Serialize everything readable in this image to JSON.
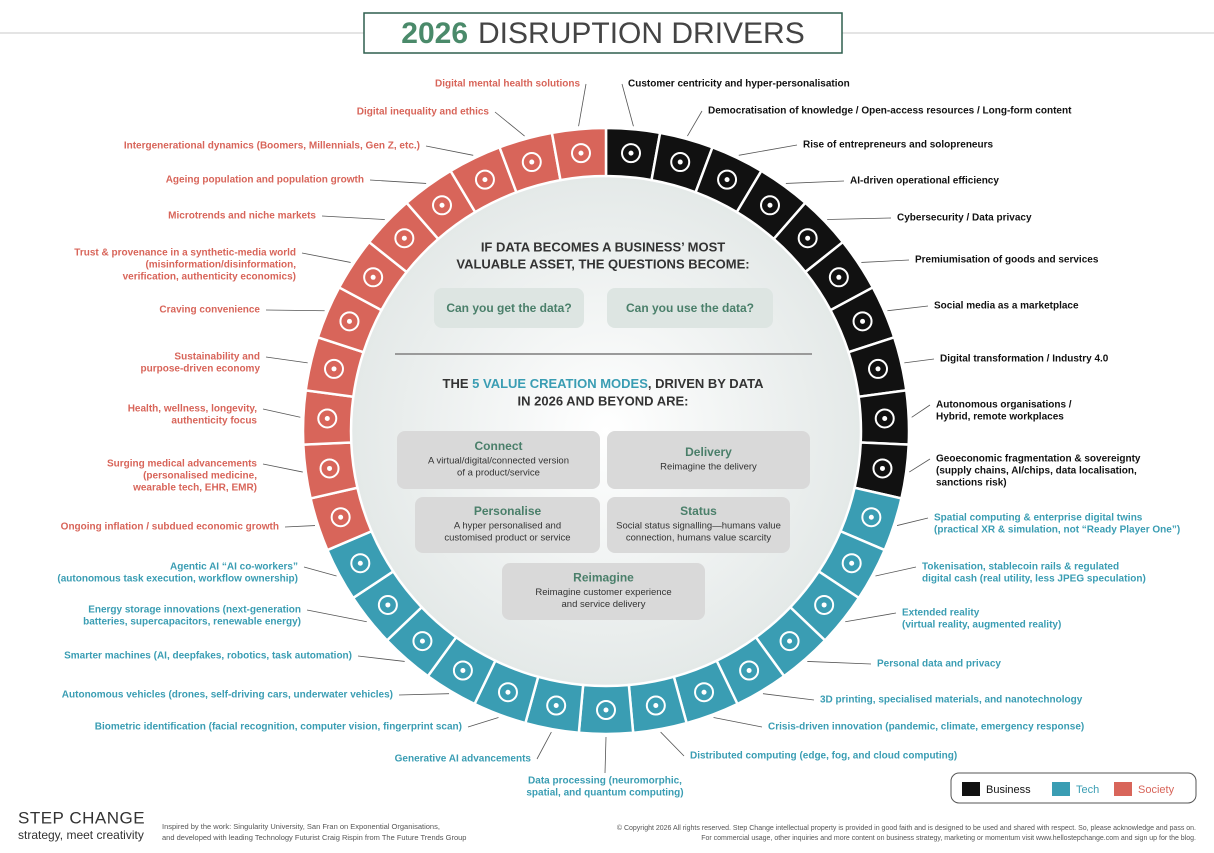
{
  "title": {
    "year": "2026",
    "text": "DISRUPTION DRIVERS"
  },
  "categories": [
    {
      "name": "Business",
      "color": "#111111"
    },
    {
      "name": "Tech",
      "color": "#3a9db3"
    },
    {
      "name": "Society",
      "color": "#d8655a"
    }
  ],
  "drivers": [
    {
      "category": "Business",
      "lines": [
        "Customer centricity and hyper-personalisation"
      ]
    },
    {
      "category": "Business",
      "lines": [
        "Democratisation of knowledge / Open-access resources / Long-form content"
      ]
    },
    {
      "category": "Business",
      "lines": [
        "Rise of entrepreneurs and solopreneurs"
      ]
    },
    {
      "category": "Business",
      "lines": [
        "AI-driven operational efficiency"
      ]
    },
    {
      "category": "Business",
      "lines": [
        "Cybersecurity / Data privacy"
      ]
    },
    {
      "category": "Business",
      "lines": [
        "Premiumisation of goods and services"
      ]
    },
    {
      "category": "Business",
      "lines": [
        "Social media as a marketplace"
      ]
    },
    {
      "category": "Business",
      "lines": [
        "Digital transformation / Industry 4.0"
      ]
    },
    {
      "category": "Business",
      "lines": [
        "Autonomous organisations /",
        "Hybrid, remote workplaces"
      ]
    },
    {
      "category": "Business",
      "lines": [
        "Geoeconomic fragmentation & sovereignty",
        "(supply chains, AI/chips, data localisation,",
        "sanctions risk)"
      ]
    },
    {
      "category": "Tech",
      "lines": [
        "Spatial computing & enterprise digital twins",
        "(practical XR & simulation, not “Ready Player One”)"
      ]
    },
    {
      "category": "Tech",
      "lines": [
        "Tokenisation, stablecoin rails & regulated",
        "digital cash (real utility, less JPEG speculation)"
      ]
    },
    {
      "category": "Tech",
      "lines": [
        "Extended reality",
        "(virtual reality, augmented reality)"
      ]
    },
    {
      "category": "Tech",
      "lines": [
        "Personal data and privacy"
      ]
    },
    {
      "category": "Tech",
      "lines": [
        "3D printing, specialised materials, and nanotechnology"
      ]
    },
    {
      "category": "Tech",
      "lines": [
        "Crisis-driven innovation (pandemic, climate, emergency response)"
      ]
    },
    {
      "category": "Tech",
      "lines": [
        "Distributed computing (edge, fog, and cloud computing)"
      ]
    },
    {
      "category": "Tech",
      "lines": [
        "Data processing (neuromorphic,",
        "spatial, and quantum computing)"
      ]
    },
    {
      "category": "Tech",
      "lines": [
        "Generative AI advancements"
      ]
    },
    {
      "category": "Tech",
      "lines": [
        "Biometric identification (facial recognition, computer vision, fingerprint scan)"
      ]
    },
    {
      "category": "Tech",
      "lines": [
        "Autonomous vehicles (drones, self-driving cars, underwater vehicles)"
      ]
    },
    {
      "category": "Tech",
      "lines": [
        "Smarter machines (AI, deepfakes, robotics, task automation)"
      ]
    },
    {
      "category": "Tech",
      "lines": [
        "Energy storage innovations (next-generation",
        "batteries, supercapacitors, renewable energy)"
      ]
    },
    {
      "category": "Tech",
      "lines": [
        "Agentic AI “AI co-workers”",
        "(autonomous task execution, workflow ownership)"
      ]
    },
    {
      "category": "Society",
      "lines": [
        "Ongoing inflation / subdued economic growth"
      ]
    },
    {
      "category": "Society",
      "lines": [
        "Surging medical advancements",
        "(personalised medicine,",
        "wearable tech, EHR, EMR)"
      ]
    },
    {
      "category": "Society",
      "lines": [
        "Health, wellness, longevity,",
        "authenticity focus"
      ]
    },
    {
      "category": "Society",
      "lines": [
        "Sustainability and",
        "purpose-driven economy"
      ]
    },
    {
      "category": "Society",
      "lines": [
        "Craving convenience"
      ]
    },
    {
      "category": "Society",
      "lines": [
        "Trust & provenance in a synthetic-media world",
        "(misinformation/disinformation,",
        "verification, authenticity economics)"
      ]
    },
    {
      "category": "Society",
      "lines": [
        "Microtrends and niche markets"
      ]
    },
    {
      "category": "Society",
      "lines": [
        "Ageing population and population growth"
      ]
    },
    {
      "category": "Society",
      "lines": [
        "Intergenerational dynamics (Boomers, Millennials, Gen Z, etc.)"
      ]
    },
    {
      "category": "Society",
      "lines": [
        "Digital inequality and ethics"
      ]
    },
    {
      "category": "Society",
      "lines": [
        "Digital mental health solutions"
      ]
    }
  ],
  "center": {
    "question_heading": [
      "IF DATA BECOMES A BUSINESS’ MOST",
      "VALUABLE ASSET, THE QUESTIONS BECOME:"
    ],
    "questions": [
      "Can you get the data?",
      "Can you use the data?"
    ],
    "modes_heading": {
      "before": "THE ",
      "highlight": "5 VALUE CREATION MODES",
      "after": ", DRIVEN BY DATA",
      "line2": "IN 2026 AND BEYOND ARE:"
    },
    "modes": [
      {
        "title": "Connect",
        "lines": [
          "A virtual/digital/connected version",
          "of a product/service"
        ]
      },
      {
        "title": "Delivery",
        "lines": [
          "Reimagine the delivery"
        ]
      },
      {
        "title": "Personalise",
        "lines": [
          "A hyper personalised and",
          "customised product or service"
        ]
      },
      {
        "title": "Status",
        "lines": [
          "Social status signalling—humans value",
          "connection, humans value scarcity"
        ]
      },
      {
        "title": "Reimagine",
        "lines": [
          "Reimagine customer experience",
          "and service delivery"
        ]
      }
    ]
  },
  "footer": {
    "brand": "STEP CHANGE",
    "tagline": "strategy, meet creativity",
    "inspired": [
      "Inspired by the work: Singularity University, San Fran on Exponential Organisations,",
      "and developed with leading Technology Futurist Craig Rispin from The Future Trends Group"
    ],
    "copyright": [
      "© Copyright 2026 All rights reserved. Step Change intellectual property is provided in good faith and is designed to be used and shared with respect. So, please acknowledge and pass on.",
      "For commercial usage, other inquiries and more content on business strategy, marketing or momentum visit www.hellostepchange.com and sign up for the blog."
    ]
  }
}
